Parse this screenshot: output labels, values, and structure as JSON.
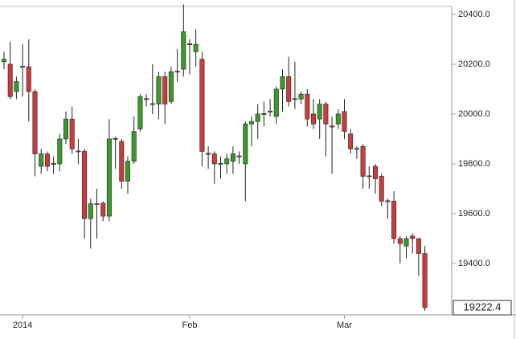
{
  "chart_data": {
    "type": "candlestick",
    "categories": [
      null,
      null,
      null,
      "2014",
      null,
      null,
      null,
      null,
      null,
      null,
      null,
      null,
      null,
      null,
      null,
      null,
      null,
      null,
      null,
      null,
      null,
      null,
      null,
      null,
      null,
      null,
      null,
      null,
      null,
      null,
      "Feb",
      null,
      null,
      null,
      null,
      null,
      null,
      null,
      null,
      null,
      null,
      null,
      null,
      null,
      null,
      null,
      null,
      null,
      null,
      null,
      null,
      null,
      null,
      null,
      null,
      "Mar",
      null,
      null,
      null,
      null,
      null,
      null,
      null,
      null,
      null,
      null,
      null,
      null,
      null
    ],
    "open": [
      20210,
      20200,
      20090,
      20188,
      20190,
      20090,
      19790,
      19840,
      19798,
      19800,
      19900,
      19980,
      19852,
      19850,
      19580,
      19640,
      19642,
      19590,
      19898,
      19890,
      19730,
      19810,
      19940,
      20062,
      20038,
      20040,
      20150,
      20050,
      20168,
      20180,
      20282,
      20250,
      20220,
      19842,
      19840,
      19798,
      19800,
      19810,
      19832,
      19800,
      19960,
      19970,
      19998,
      20008,
      19990,
      20100,
      20150,
      20058,
      20060,
      20080,
      20000,
      19980,
      20040,
      19952,
      19960,
      20010,
      19920,
      19858,
      19870,
      19752,
      19790,
      19750,
      19652,
      19650,
      19500,
      19470,
      19510,
      19500,
      19440
    ],
    "high": [
      20250,
      20290,
      20150,
      20280,
      20300,
      20100,
      19860,
      19850,
      19830,
      19920,
      20010,
      20030,
      19900,
      19860,
      19660,
      19700,
      19650,
      19980,
      19910,
      19900,
      19830,
      19990,
      20080,
      20080,
      20200,
      20170,
      20170,
      20190,
      20260,
      20440,
      20300,
      20340,
      20250,
      19870,
      19850,
      19830,
      19840,
      19870,
      19850,
      19970,
      19990,
      20040,
      20050,
      20060,
      20110,
      20180,
      20230,
      20210,
      20090,
      20100,
      20060,
      20060,
      20050,
      19990,
      20020,
      20060,
      19940,
      19870,
      19880,
      19790,
      19800,
      19760,
      19660,
      19690,
      19510,
      19510,
      19520,
      19500,
      19470
    ],
    "low": [
      20180,
      20060,
      20060,
      20070,
      19970,
      19750,
      19760,
      19770,
      19760,
      19770,
      19880,
      19840,
      19800,
      19500,
      19460,
      19500,
      19570,
      19570,
      19780,
      19700,
      19680,
      19800,
      19930,
      20030,
      20000,
      19980,
      19960,
      20040,
      20130,
      20150,
      20160,
      20190,
      19790,
      19780,
      19720,
      19740,
      19760,
      19760,
      19800,
      19650,
      19870,
      19900,
      19950,
      19990,
      19960,
      20010,
      20030,
      20020,
      20040,
      19950,
      19940,
      19900,
      19830,
      19760,
      19940,
      19900,
      19840,
      19820,
      19700,
      19700,
      19680,
      19630,
      19580,
      19480,
      19400,
      19420,
      19440,
      19350,
      19210
    ],
    "close": [
      20220,
      20070,
      20130,
      20192,
      20090,
      19840,
      19840,
      19790,
      19802,
      19900,
      19980,
      19860,
      19848,
      19580,
      19640,
      19638,
      19590,
      19900,
      19902,
      19730,
      19810,
      19930,
      20070,
      20058,
      20042,
      20150,
      20040,
      20170,
      20172,
      20330,
      20278,
      20280,
      19850,
      19838,
      19800,
      19802,
      19820,
      19840,
      19828,
      19960,
      19970,
      20000,
      20002,
      20012,
      20100,
      20150,
      20050,
      20062,
      20080,
      19980,
      19960,
      20040,
      19960,
      19948,
      20000,
      19930,
      19860,
      19862,
      19750,
      19748,
      19740,
      19650,
      19648,
      19500,
      19480,
      19500,
      19500,
      19440,
      19222.4
    ],
    "last_value_label": "19222.4",
    "ylim": [
      19193.5,
      20432
    ],
    "yticks": [
      {
        "value": 19400,
        "label": "19400.0"
      },
      {
        "value": 19600,
        "label": "19600.0"
      },
      {
        "value": 19800,
        "label": "19800.0"
      },
      {
        "value": 20000,
        "label": "20000.0"
      },
      {
        "value": 20200,
        "label": "20200.0"
      },
      {
        "value": 20400,
        "label": "20400.0"
      }
    ],
    "up_color": "#3a9b2a",
    "down_color": "#cc3b3b"
  }
}
